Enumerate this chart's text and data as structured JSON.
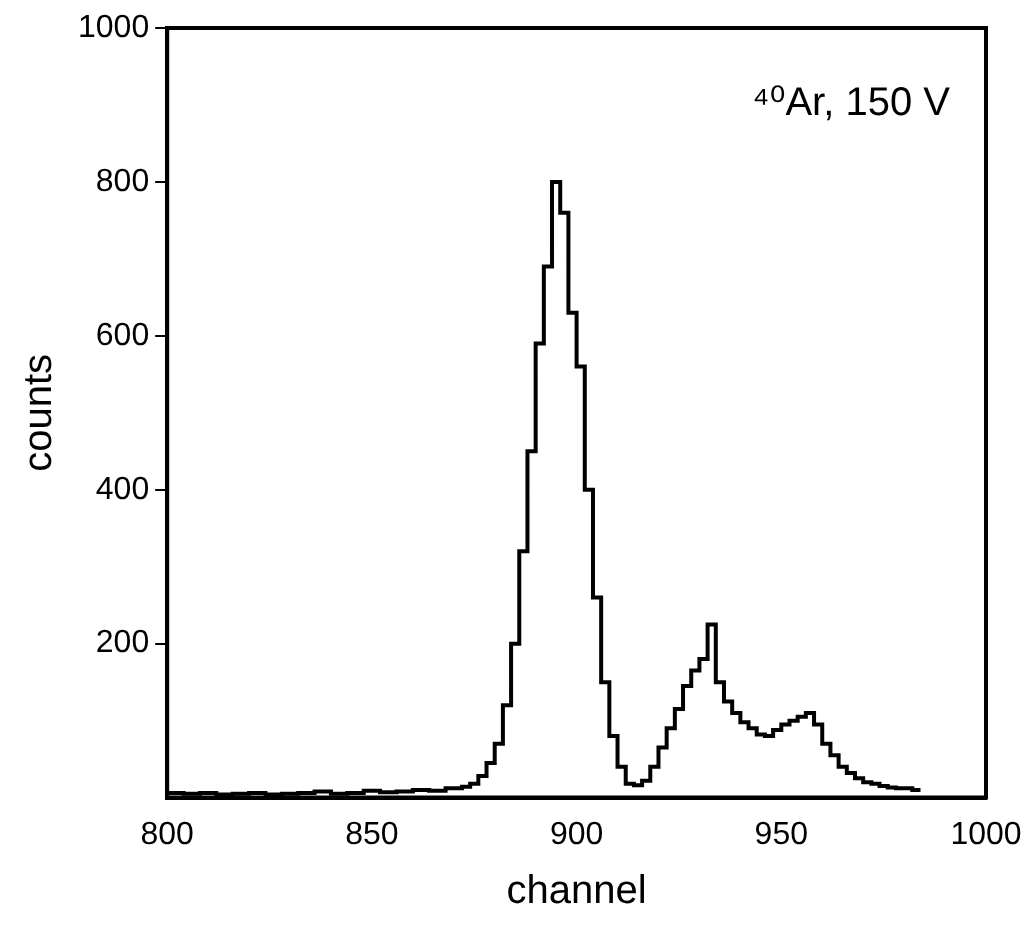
{
  "chart_data": {
    "type": "step",
    "xlabel": "channel",
    "ylabel": "counts",
    "annotations": [
      "⁴⁰Ar, 150 V"
    ],
    "x": [
      800,
      804,
      808,
      812,
      816,
      820,
      824,
      828,
      832,
      836,
      840,
      844,
      848,
      852,
      856,
      860,
      864,
      868,
      872,
      874,
      876,
      878,
      880,
      882,
      884,
      886,
      888,
      890,
      892,
      894,
      896,
      898,
      900,
      902,
      904,
      906,
      908,
      910,
      912,
      914,
      916,
      918,
      920,
      922,
      924,
      926,
      928,
      930,
      932,
      934,
      936,
      938,
      940,
      942,
      944,
      946,
      948,
      950,
      952,
      954,
      956,
      958,
      960,
      962,
      964,
      966,
      968,
      970,
      972,
      974,
      976,
      978,
      980,
      982,
      984
    ],
    "series": [
      {
        "color": "#000000",
        "values": [
          8,
          6,
          5,
          6,
          4,
          5,
          6,
          4,
          5,
          6,
          8,
          5,
          6,
          9,
          7,
          8,
          10,
          9,
          12,
          14,
          18,
          28,
          45,
          70,
          120,
          200,
          320,
          450,
          590,
          690,
          800,
          760,
          630,
          560,
          400,
          260,
          150,
          80,
          40,
          18,
          16,
          22,
          40,
          65,
          90,
          115,
          145,
          165,
          180,
          225,
          150,
          125,
          110,
          98,
          90,
          82,
          80,
          88,
          95,
          100,
          105,
          110,
          95,
          70,
          55,
          40,
          32,
          25,
          20,
          18,
          15,
          13,
          12,
          12,
          10
        ]
      }
    ],
    "xlim": [
      800,
      1000
    ],
    "ylim": [
      0,
      1000
    ],
    "xticks": [
      800,
      850,
      900,
      950,
      1000
    ],
    "yticks": [
      200,
      400,
      600,
      800,
      1000
    ],
    "grid": false
  }
}
